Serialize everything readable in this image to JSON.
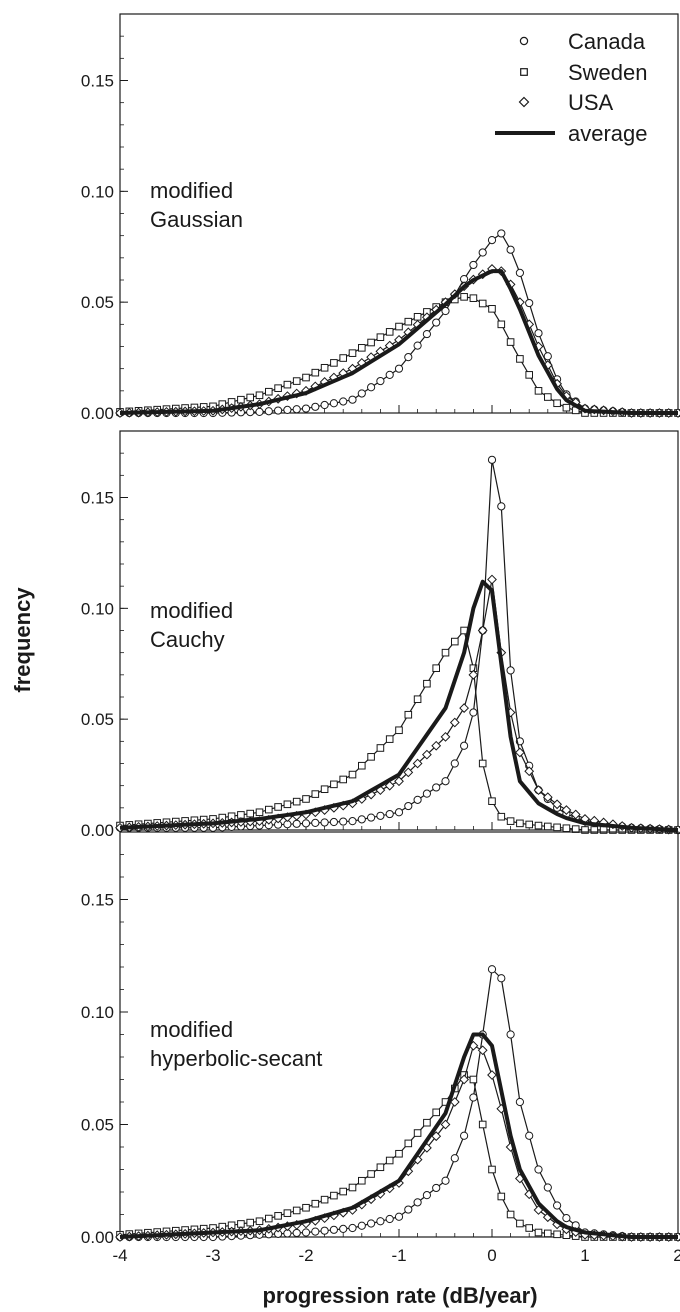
{
  "chart_data": {
    "type": "line",
    "xlabel": "progression rate (dB/year)",
    "ylabel": "frequency",
    "xlim": [
      -4,
      2
    ],
    "ylim": [
      0,
      0.18
    ],
    "x_ticks": [
      "-4",
      "-3",
      "-2",
      "-1",
      "0",
      "1",
      "2"
    ],
    "y_ticks": [
      "0.00",
      "0.05",
      "0.10",
      "0.15"
    ],
    "grid": false,
    "legend_position": "top-right",
    "series": [
      {
        "name": "Canada",
        "marker": "circle"
      },
      {
        "name": "Sweden",
        "marker": "square"
      },
      {
        "name": "USA",
        "marker": "diamond"
      },
      {
        "name": "average",
        "marker": "thick-line"
      }
    ],
    "panels": [
      {
        "label_lines": [
          "modified",
          "Gaussian"
        ],
        "x": [
          -4.0,
          -3.0,
          -2.5,
          -2.0,
          -1.5,
          -1.0,
          -0.5,
          -0.25,
          0.0,
          0.1,
          0.25,
          0.5,
          0.75,
          1.0,
          1.5,
          2.0
        ],
        "series": [
          {
            "name": "Canada",
            "y": [
              0.0,
              0.0,
              0.0005,
              0.002,
              0.006,
              0.02,
              0.046,
              0.064,
              0.078,
              0.081,
              0.07,
              0.036,
              0.01,
              0.002,
              0.0,
              0.0
            ]
          },
          {
            "name": "Sweden",
            "y": [
              0.0005,
              0.003,
              0.008,
              0.016,
              0.027,
              0.039,
              0.05,
              0.053,
              0.047,
              0.04,
              0.028,
              0.01,
              0.003,
              0.0,
              0.0,
              0.0
            ]
          },
          {
            "name": "USA",
            "y": [
              0.0,
              0.001,
              0.004,
              0.01,
              0.02,
              0.033,
              0.05,
              0.059,
              0.065,
              0.064,
              0.055,
              0.03,
              0.009,
              0.002,
              0.0,
              0.0
            ]
          },
          {
            "name": "average",
            "y": [
              0.0,
              0.001,
              0.004,
              0.009,
              0.018,
              0.031,
              0.049,
              0.059,
              0.064,
              0.064,
              0.052,
              0.026,
              0.007,
              0.001,
              0.0,
              0.0
            ]
          }
        ]
      },
      {
        "label_lines": [
          "modified",
          "Cauchy"
        ],
        "x": [
          -4.0,
          -3.0,
          -2.5,
          -2.0,
          -1.5,
          -1.0,
          -0.5,
          -0.3,
          -0.2,
          -0.1,
          0.0,
          0.1,
          0.2,
          0.3,
          0.5,
          0.75,
          1.0,
          1.5,
          2.0
        ],
        "series": [
          {
            "name": "Canada",
            "y": [
              0.001,
              0.001,
              0.002,
              0.003,
              0.004,
              0.008,
              0.022,
              0.038,
              0.053,
              0.09,
              0.167,
              0.146,
              0.072,
              0.04,
              0.018,
              0.008,
              0.004,
              0.001,
              0.0
            ]
          },
          {
            "name": "Sweden",
            "y": [
              0.002,
              0.005,
              0.008,
              0.014,
              0.025,
              0.045,
              0.08,
              0.09,
              0.073,
              0.03,
              0.013,
              0.006,
              0.004,
              0.003,
              0.002,
              0.001,
              0.0,
              0.0,
              0.0
            ]
          },
          {
            "name": "USA",
            "y": [
              0.001,
              0.003,
              0.004,
              0.007,
              0.012,
              0.022,
              0.042,
              0.055,
              0.07,
              0.09,
              0.113,
              0.08,
              0.053,
              0.035,
              0.018,
              0.01,
              0.005,
              0.001,
              0.0
            ]
          },
          {
            "name": "average",
            "y": [
              0.001,
              0.003,
              0.005,
              0.008,
              0.013,
              0.025,
              0.055,
              0.08,
              0.1,
              0.112,
              0.108,
              0.075,
              0.042,
              0.022,
              0.012,
              0.006,
              0.003,
              0.001,
              0.0
            ]
          }
        ]
      },
      {
        "label_lines": [
          "modified",
          "hyperbolic-secant"
        ],
        "x": [
          -4.0,
          -3.0,
          -2.5,
          -2.0,
          -1.5,
          -1.0,
          -0.5,
          -0.3,
          -0.2,
          -0.1,
          0.0,
          0.1,
          0.2,
          0.3,
          0.5,
          0.75,
          1.0,
          1.5,
          2.0
        ],
        "series": [
          {
            "name": "Canada",
            "y": [
              0.0,
              0.0,
              0.001,
              0.002,
              0.004,
              0.009,
              0.025,
              0.045,
              0.062,
              0.09,
              0.119,
              0.115,
              0.09,
              0.06,
              0.03,
              0.01,
              0.002,
              0.0,
              0.0
            ]
          },
          {
            "name": "Sweden",
            "y": [
              0.001,
              0.004,
              0.007,
              0.013,
              0.022,
              0.037,
              0.06,
              0.072,
              0.07,
              0.05,
              0.03,
              0.018,
              0.01,
              0.006,
              0.002,
              0.001,
              0.0,
              0.0,
              0.0
            ]
          },
          {
            "name": "USA",
            "y": [
              0.0,
              0.002,
              0.003,
              0.006,
              0.012,
              0.024,
              0.05,
              0.07,
              0.085,
              0.083,
              0.072,
              0.057,
              0.04,
              0.026,
              0.012,
              0.004,
              0.001,
              0.0,
              0.0
            ]
          },
          {
            "name": "average",
            "y": [
              0.0,
              0.002,
              0.003,
              0.007,
              0.013,
              0.025,
              0.055,
              0.08,
              0.09,
              0.09,
              0.085,
              0.065,
              0.045,
              0.03,
              0.015,
              0.005,
              0.002,
              0.0,
              0.0
            ]
          }
        ]
      }
    ]
  }
}
